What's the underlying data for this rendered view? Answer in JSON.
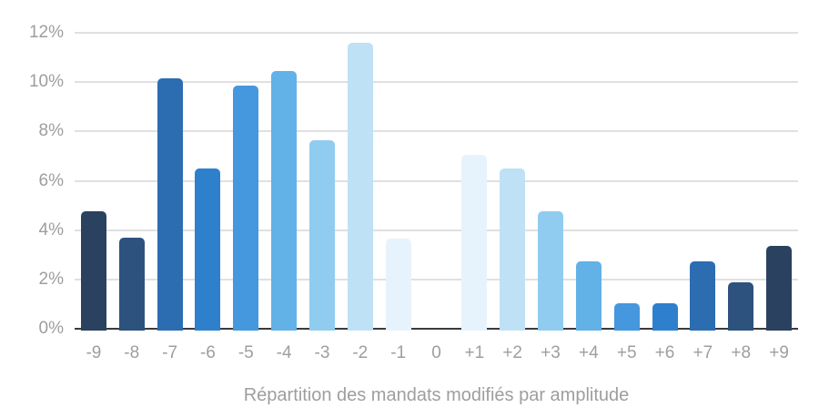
{
  "chart_data": {
    "type": "bar",
    "title": "Répartition des mandats modifiés par amplitude",
    "xlabel": "",
    "ylabel": "",
    "categories": [
      "-9",
      "-8",
      "-7",
      "-6",
      "-5",
      "-4",
      "-3",
      "-2",
      "-1",
      "0",
      "+1",
      "+2",
      "+3",
      "+4",
      "+5",
      "+6",
      "+7",
      "+8",
      "+9"
    ],
    "values": [
      4.75,
      3.7,
      10.15,
      6.5,
      9.85,
      10.45,
      7.65,
      11.6,
      3.65,
      0,
      7.05,
      6.5,
      4.75,
      2.75,
      1.05,
      1.05,
      2.75,
      1.9,
      3.35
    ],
    "bar_colors": [
      "#2A425F",
      "#2D527E",
      "#2C6DB2",
      "#2F80CC",
      "#4597DE",
      "#62B1E7",
      "#90CCF0",
      "#BEE1F6",
      "#E7F3FC",
      "#FFFFFF",
      "#E7F3FC",
      "#BEE1F6",
      "#90CCF0",
      "#62B1E7",
      "#4597DE",
      "#2F80CC",
      "#2C6DB2",
      "#2D527E",
      "#2A425F"
    ],
    "y_ticks": [
      0,
      2,
      4,
      6,
      8,
      10,
      12
    ],
    "y_tick_labels": [
      "0%",
      "2%",
      "4%",
      "6%",
      "8%",
      "10%",
      "12%"
    ],
    "ylim": [
      0,
      12
    ],
    "grid": true,
    "legend": "none",
    "colors": {
      "background": "#FFFFFF",
      "gridline": "#E0E0E0",
      "axis_line": "#3B3B3B",
      "tick_label": "#9E9E9E",
      "title": "#9E9E9E"
    }
  }
}
